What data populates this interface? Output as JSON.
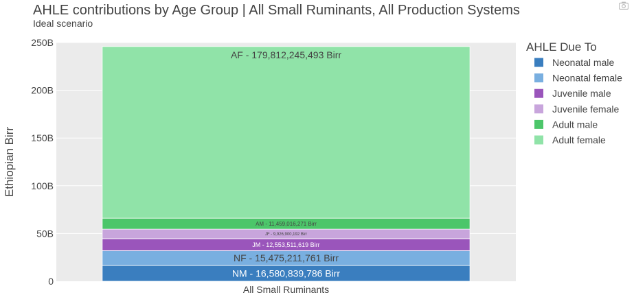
{
  "chart_data": {
    "type": "bar",
    "stacked": true,
    "title": "AHLE contributions by Age Group | All Small Ruminants, All Production Systems",
    "subtitle": "Ideal scenario",
    "ylabel": "Ethiopian Birr",
    "xlabel": "",
    "categories": [
      "All Small Ruminants"
    ],
    "ylim": [
      0,
      250000000000
    ],
    "yticks": [
      0,
      50000000000,
      100000000000,
      150000000000,
      200000000000,
      250000000000
    ],
    "ytick_labels": [
      "0",
      "50B",
      "100B",
      "150B",
      "200B",
      "250B"
    ],
    "grid": true,
    "legend": {
      "title": "AHLE Due To",
      "position": "right"
    },
    "series": [
      {
        "name": "Neonatal male",
        "color": "#3a7ebf",
        "values": [
          16580839786
        ],
        "label": "NM - 16,580,839,786 Birr",
        "label_color": "#ffffff",
        "label_size": 14
      },
      {
        "name": "Neonatal female",
        "color": "#79afe0",
        "values": [
          15475211761
        ],
        "label": "NF - 15,475,211,761 Birr",
        "label_color": "#444444",
        "label_size": 14
      },
      {
        "name": "Juvenile male",
        "color": "#9a55bb",
        "values": [
          12553511619
        ],
        "label": "JM - 12,553,511,619 Birr",
        "label_color": "#ffffff",
        "label_size": 9
      },
      {
        "name": "Juvenile female",
        "color": "#c8a5dc",
        "values": [
          9926900192
        ],
        "label": "JF - 9,926,900,192 Birr",
        "label_color": "#444444",
        "label_size": 6
      },
      {
        "name": "Adult male",
        "color": "#4cc66a",
        "values": [
          11459016271
        ],
        "label": "AM - 11,459,016,271 Birr",
        "label_color": "#444444",
        "label_size": 8
      },
      {
        "name": "Adult female",
        "color": "#90e3a8",
        "values": [
          179812245493
        ],
        "label": "AF - 179,812,245,493 Birr",
        "label_color": "#444444",
        "label_size": 14
      }
    ]
  },
  "icons": {
    "modebar": "camera-icon"
  }
}
